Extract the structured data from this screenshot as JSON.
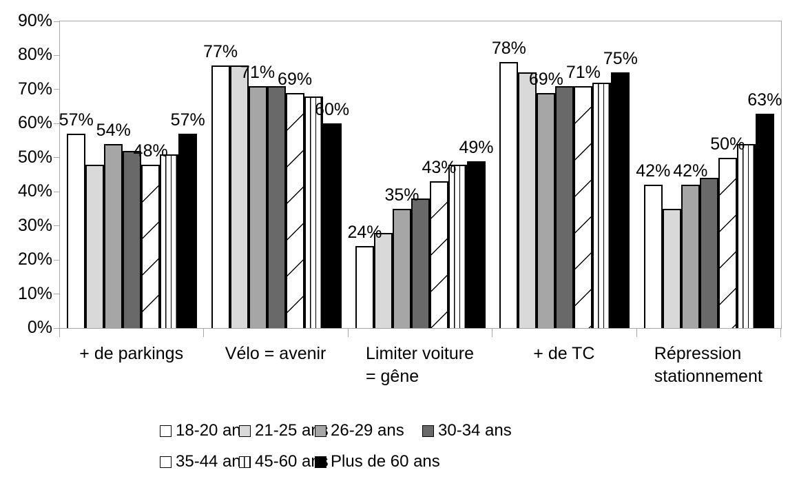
{
  "chart_data": {
    "type": "bar",
    "title": "",
    "categories": [
      "+ de parkings",
      "Vélo = avenir",
      "Limiter voiture = gêne",
      "+ de TC",
      "Répression stationnement"
    ],
    "category_lines": [
      [
        "+ de parkings"
      ],
      [
        "Vélo = avenir"
      ],
      [
        "Limiter voiture",
        "= gêne"
      ],
      [
        "+ de TC"
      ],
      [
        "Répression",
        "stationnement"
      ]
    ],
    "series": [
      {
        "name": "18-20 ans",
        "pattern": "white",
        "values": [
          57,
          77,
          24,
          78,
          42
        ]
      },
      {
        "name": "21-25 ans",
        "pattern": "lightgray",
        "values": [
          48,
          77,
          28,
          75,
          35
        ]
      },
      {
        "name": "26-29 ans",
        "pattern": "midgray",
        "values": [
          54,
          71,
          35,
          69,
          42
        ]
      },
      {
        "name": "30-34 ans",
        "pattern": "darkgray",
        "values": [
          52,
          71,
          38,
          71,
          44
        ]
      },
      {
        "name": "35-44 ans",
        "pattern": "diagonal-hatch",
        "values": [
          48,
          69,
          43,
          71,
          50
        ]
      },
      {
        "name": "45-60 ans",
        "pattern": "vertical-lines",
        "values": [
          51,
          68,
          48,
          72,
          54
        ]
      },
      {
        "name": "Plus de 60 ans",
        "pattern": "black",
        "values": [
          57,
          60,
          49,
          75,
          63
        ]
      }
    ],
    "data_labels": {
      "labeled_series_indices": [
        0,
        2,
        4,
        6
      ],
      "format": "{v}%",
      "values_shown": {
        "+ de parkings": [
          "57%",
          "54%",
          "48%",
          "57%"
        ],
        "Vélo = avenir": [
          "77%",
          "71%",
          "69%",
          "60%"
        ],
        "Limiter voiture = gêne": [
          "24%",
          "35%",
          "43%",
          "49%"
        ],
        "+ de TC": [
          "78%",
          "69%",
          "71%",
          "75%"
        ],
        "Répression stationnement": [
          "42%",
          "42%",
          "50%",
          "63%"
        ]
      }
    },
    "y_axis": {
      "min": 0,
      "max": 90,
      "step": 10,
      "tick_labels": [
        "0%",
        "10%",
        "20%",
        "30%",
        "40%",
        "50%",
        "60%",
        "70%",
        "80%",
        "90%"
      ]
    },
    "legend": {
      "position": "bottom",
      "rows": [
        [
          "18-20 ans",
          "21-25 ans",
          "26-29 ans",
          "30-34 ans"
        ],
        [
          "35-44 ans",
          "45-60 ans",
          "Plus de 60 ans"
        ]
      ]
    },
    "grid": "off",
    "colors": {
      "white": "#ffffff",
      "light_gray": "#d9d9d9",
      "mid_gray": "#a6a6a6",
      "dark_gray": "#696969",
      "black": "#000000",
      "axis_line": "#a6a6a6",
      "text": "#000000"
    }
  }
}
